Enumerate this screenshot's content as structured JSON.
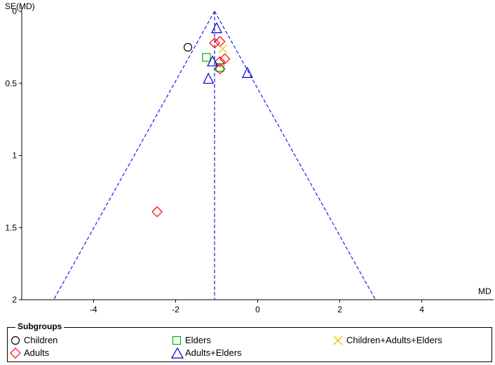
{
  "chart_data": {
    "type": "scatter",
    "title": "",
    "xlabel": "MD",
    "ylabel": "SE(MD)",
    "xlim": [
      -5.75,
      5.75
    ],
    "ylim": [
      0,
      2
    ],
    "y_inverted": true,
    "x_ticks": [
      -4,
      -2,
      0,
      2,
      4
    ],
    "y_ticks": [
      0,
      0.5,
      1,
      1.5,
      2
    ],
    "pooled_estimate": -1.05,
    "funnel_ci": "95%",
    "legend_title": "Subgroups",
    "legend_position": "bottom",
    "series": [
      {
        "name": "Children",
        "marker": "circle",
        "color": "#000000",
        "points": [
          {
            "x": -1.7,
            "y": 0.25
          }
        ]
      },
      {
        "name": "Adults",
        "marker": "diamond",
        "color": "#ff0000",
        "points": [
          {
            "x": -1.05,
            "y": 0.22
          },
          {
            "x": -0.92,
            "y": 0.21
          },
          {
            "x": -0.92,
            "y": 0.35
          },
          {
            "x": -0.8,
            "y": 0.33
          },
          {
            "x": -0.92,
            "y": 0.4
          },
          {
            "x": -2.45,
            "y": 1.39
          }
        ]
      },
      {
        "name": "Elders",
        "marker": "square",
        "color": "#00b000",
        "points": [
          {
            "x": -1.25,
            "y": 0.32
          },
          {
            "x": -0.92,
            "y": 0.39
          }
        ]
      },
      {
        "name": "Adults+Elders",
        "marker": "triangle",
        "color": "#0000cc",
        "points": [
          {
            "x": -1.0,
            "y": 0.12
          },
          {
            "x": -1.1,
            "y": 0.35
          },
          {
            "x": -1.2,
            "y": 0.47
          },
          {
            "x": -0.25,
            "y": 0.43
          }
        ]
      },
      {
        "name": "Children+Adults+Elders",
        "marker": "x",
        "color": "#e6c800",
        "points": [
          {
            "x": -0.85,
            "y": 0.26
          }
        ]
      }
    ]
  }
}
